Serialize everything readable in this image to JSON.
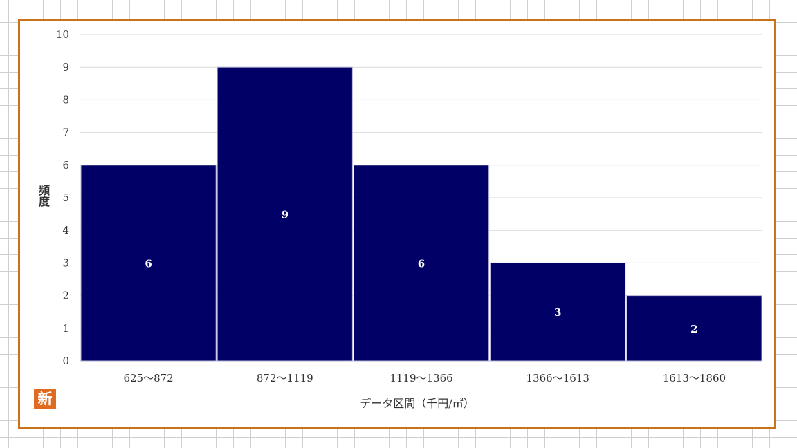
{
  "chart_data": {
    "type": "bar",
    "categories": [
      "625～872",
      "872～1119",
      "1119～1366",
      "1366～1613",
      "1613～1860"
    ],
    "values": [
      6,
      9,
      6,
      3,
      2
    ],
    "data_labels": [
      "6",
      "9",
      "6",
      "3",
      "2"
    ],
    "xlabel": "データ区間（千円/㎡）",
    "ylabel": "頻度",
    "ylim": [
      0,
      10
    ],
    "yticks": [
      0,
      1,
      2,
      3,
      4,
      5,
      6,
      7,
      8,
      9,
      10
    ],
    "grid": true,
    "bar_color": "#000066",
    "frame_color": "#c8731b"
  },
  "logo": {
    "glyph": "新",
    "color": "#e06a1f"
  }
}
